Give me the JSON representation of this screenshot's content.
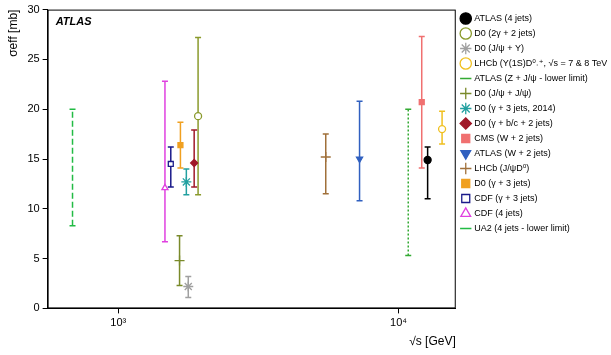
{
  "chart_data": {
    "type": "scatter",
    "x_label": "√s [GeV]",
    "y_label": "σeff [mb]",
    "annotation": "ATLAS",
    "log": "x",
    "grid": false,
    "legend": "right",
    "xlim": [
      560,
      16000
    ],
    "xticks": [
      {
        "value": 1000,
        "label": "10³"
      },
      {
        "value": 10000,
        "label": "10⁴"
      }
    ],
    "ylim": [
      0,
      30
    ],
    "yticks": [
      0,
      5,
      10,
      15,
      20,
      25,
      30
    ],
    "series": [
      {
        "name": "ATLAS (4 jets)",
        "color": "#000000",
        "marker": "circle",
        "x": [
          12700
        ],
        "values": [
          14.9
        ],
        "err_minus": [
          3.9
        ],
        "err_plus": [
          1.3
        ]
      },
      {
        "name": "D0 (2γ + 2 jets)",
        "color": "#8a9a2c",
        "marker": "circle_open",
        "x": [
          1927
        ],
        "values": [
          19.3
        ],
        "err_minus": [
          7.9
        ],
        "err_plus": [
          7.9
        ]
      },
      {
        "name": "D0 (J/ψ + Υ)",
        "color": "#a0a0a0",
        "marker": "star",
        "x": [
          1778
        ],
        "values": [
          2.2
        ],
        "err_minus": [
          1.1
        ],
        "err_plus": [
          1.0
        ]
      },
      {
        "name": "LHCb (Υ(1S)D⁰˒⁺, √s = 7 & 8 TeV)",
        "color": "#f0c020",
        "marker": "circle_open",
        "x": [
          14300
        ],
        "values": [
          18.0
        ],
        "err_minus": [
          1.5
        ],
        "err_plus": [
          1.8
        ]
      },
      {
        "name": "ATLAS (Z + J/ψ - lower limit)",
        "color": "#33aa33",
        "marker": "none",
        "line_style": "dotted",
        "x": [
          10830
        ],
        "values": [
          5.3
        ],
        "err_minus": [
          0
        ],
        "err_plus": [
          14.7
        ]
      },
      {
        "name": "D0 (J/ψ + J/ψ)",
        "color": "#7a8a2a",
        "marker": "plus",
        "x": [
          1655
        ],
        "values": [
          4.8
        ],
        "err_minus": [
          2.5
        ],
        "err_plus": [
          2.5
        ]
      },
      {
        "name": "D0 (γ + 3 jets, 2014)",
        "color": "#22a0a0",
        "marker": "star",
        "x": [
          1750
        ],
        "values": [
          12.7
        ],
        "err_minus": [
          1.3
        ],
        "err_plus": [
          1.3
        ]
      },
      {
        "name": "D0 (γ + b/c + 2 jets)",
        "color": "#a01828",
        "marker": "diamond",
        "x": [
          1866
        ],
        "values": [
          14.6
        ],
        "err_minus": [
          2.4
        ],
        "err_plus": [
          3.3
        ]
      },
      {
        "name": "CMS (W + 2 jets)",
        "color": "#f07070",
        "marker": "square",
        "x": [
          12100
        ],
        "values": [
          20.7
        ],
        "err_minus": [
          6.6
        ],
        "err_plus": [
          6.6
        ]
      },
      {
        "name": "ATLAS (W + 2 jets)",
        "color": "#3060c0",
        "marker": "triangle_down",
        "x": [
          7260
        ],
        "values": [
          15
        ],
        "err_minus": [
          4.2
        ],
        "err_plus": [
          5.8
        ]
      },
      {
        "name": "LHCb (J/ψD⁰)",
        "color": "#a0703a",
        "marker": "plus",
        "x": [
          5500
        ],
        "values": [
          15.2
        ],
        "err_minus": [
          3.7
        ],
        "err_plus": [
          2.3
        ]
      },
      {
        "name": "D0 (γ + 3 jets)",
        "color": "#f0a020",
        "marker": "square",
        "x": [
          1667
        ],
        "values": [
          16.4
        ],
        "err_minus": [
          2.3
        ],
        "err_plus": [
          2.3
        ]
      },
      {
        "name": "CDF (γ + 3 jets)",
        "color": "#1a1a8a",
        "marker": "square_open",
        "x": [
          1540
        ],
        "values": [
          14.5
        ],
        "err_minus": [
          2.3
        ],
        "err_plus": [
          1.7
        ]
      },
      {
        "name": "CDF (4 jets)",
        "color": "#e040e0",
        "marker": "triangle_open",
        "x": [
          1468
        ],
        "values": [
          12.1
        ],
        "err_minus": [
          5.4
        ],
        "err_plus": [
          10.7
        ]
      },
      {
        "name": "UA2 (4 jets - lower limit)",
        "color": "#22bb44",
        "marker": "none",
        "line_style": "dashed",
        "x": [
          687
        ],
        "values": [
          8.3
        ],
        "err_minus": [
          0
        ],
        "err_plus": [
          11.7
        ]
      }
    ]
  }
}
